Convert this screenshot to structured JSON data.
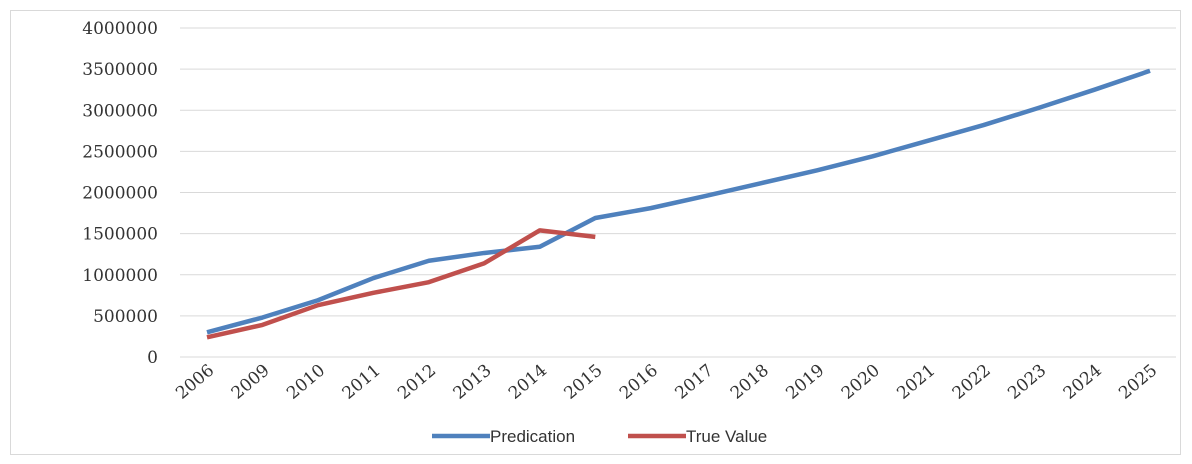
{
  "chart_data": {
    "type": "line",
    "categories": [
      "2006",
      "2009",
      "2010",
      "2011",
      "2012",
      "2013",
      "2014",
      "2015",
      "2016",
      "2017",
      "2018",
      "2019",
      "2020",
      "2021",
      "2022",
      "2023",
      "2024",
      "2025"
    ],
    "series": [
      {
        "name": "Predication",
        "color": "#4f81bd",
        "values": [
          300000,
          480000,
          690000,
          960000,
          1170000,
          1265000,
          1340000,
          1690000,
          1810000,
          1960000,
          2115000,
          2270000,
          2440000,
          2630000,
          2820000,
          3030000,
          3250000,
          3480000
        ]
      },
      {
        "name": "True Value",
        "color": "#c0504d",
        "values": [
          240000,
          390000,
          630000,
          780000,
          910000,
          1140000,
          1540000,
          1460000,
          null,
          null,
          null,
          null,
          null,
          null,
          null,
          null,
          null,
          null
        ]
      }
    ],
    "ylim": [
      0,
      4000000
    ],
    "yticks": [
      0,
      500000,
      1000000,
      1500000,
      2000000,
      2500000,
      3000000,
      3500000,
      4000000
    ],
    "grid": true,
    "legend": "bottom"
  }
}
